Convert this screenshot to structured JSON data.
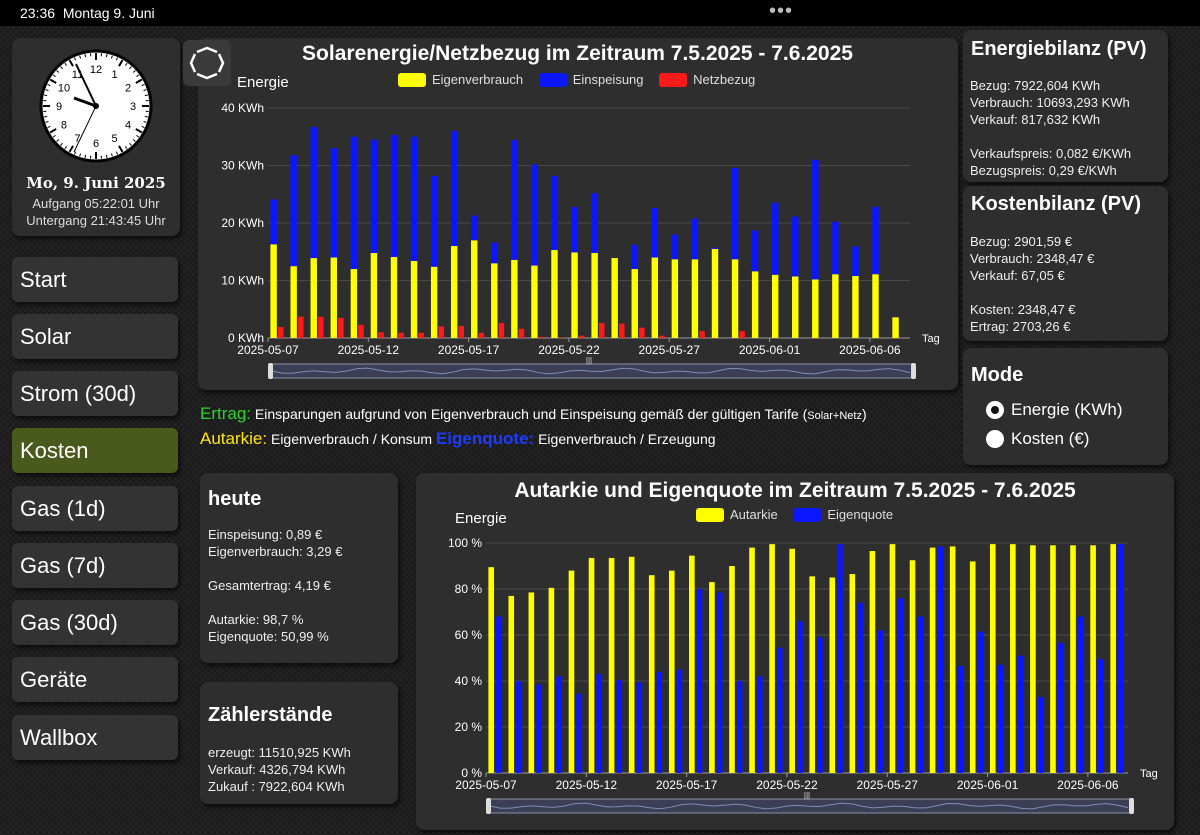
{
  "statusbar": {
    "time": "23:36",
    "date": "Montag 9. Juni"
  },
  "clock": {
    "numbers": [
      "12",
      "1",
      "2",
      "3",
      "4",
      "5",
      "6",
      "7",
      "8",
      "9",
      "10",
      "11"
    ],
    "date_label": "Mo, 9. Juni 2025",
    "sunrise": "Aufgang 05:22:01 Uhr",
    "sunset": "Untergang 21:43:45 Uhr"
  },
  "nav": {
    "items": [
      {
        "label": "Start"
      },
      {
        "label": "Solar"
      },
      {
        "label": "Strom (30d)"
      },
      {
        "label": "Kosten",
        "active": true
      },
      {
        "label": "Gas (1d)"
      },
      {
        "label": "Gas (7d)"
      },
      {
        "label": "Gas (30d)"
      },
      {
        "label": "Geräte"
      },
      {
        "label": "Wallbox"
      }
    ]
  },
  "chart1": {
    "title": "Solarenergie/Netzbezug im Zeitraum 7.5.2025 - 7.6.2025",
    "ylabel": "Energie",
    "xlabel": "Tag",
    "legend": [
      "Eigenverbrauch",
      "Einspeisung",
      "Netzbezug"
    ]
  },
  "chart2": {
    "title": "Autarkie und Eigenquote im Zeitraum 7.5.2025 - 7.6.2025",
    "ylabel": "Energie",
    "xlabel": "Tag",
    "legend": [
      "Autarkie",
      "Eigenquote"
    ]
  },
  "description": {
    "ertrag_label": "Ertrag:",
    "ertrag_text": "Einsparungen aufgrund von Eigenverbrauch und Einspeisung gemäß der gültigen Tarife (",
    "ertrag_small": "Solar+Netz",
    "ertrag_close": ")",
    "autarkie_label": "Autarkie:",
    "autarkie_text": "Eigenverbrauch / Konsum",
    "eigenquote_label": "Eigenquote:",
    "eigenquote_text": "Eigenverbrauch / Erzeugung"
  },
  "energiebilanz": {
    "title": "Energiebilanz (PV)",
    "bezug": "Bezug: 7922,604 KWh",
    "verbrauch": "Verbrauch: 10693,293 KWh",
    "verkauf": "Verkauf: 817,632 KWh",
    "verkaufspreis": "Verkaufspreis: 0,082 €/KWh",
    "bezugspreis": "Bezugspreis: 0,29 €/KWh"
  },
  "kostenbilanz": {
    "title": "Kostenbilanz (PV)",
    "bezug": "Bezug: 2901,59 €",
    "verbrauch": "Verbrauch: 2348,47 €",
    "verkauf": "Verkauf: 67,05 €",
    "kosten": "Kosten: 2348,47 €",
    "ertrag": "Ertrag: 2703,26 €"
  },
  "mode": {
    "title": "Mode",
    "option1": "Energie (KWh)",
    "option2": "Kosten (€)",
    "selected": "Energie (KWh)"
  },
  "heute": {
    "title": "heute",
    "einspeisung": "Einspeisung: 0,89 €",
    "eigenverbrauch": "Eigenverbrauch: 3,29 €",
    "gesamtertrag": "Gesamtertrag: 4,19 €",
    "autarkie": "Autarkie: 98,7 %",
    "eigenquote": "Eigenquote: 50,99 %"
  },
  "zaehler": {
    "title": "Zählerstände",
    "erzeugt": "erzeugt: 11510,925 KWh",
    "verkauf": "Verkauf: 4326,794 KWh",
    "zukauf": "Zukauf : 7922,604 KWh"
  },
  "colors": {
    "yellow": "#ffff00",
    "blue": "#0a16ff",
    "red": "#ff1a1a",
    "active_nav": "#4a5a1c"
  },
  "chart_data": [
    {
      "type": "bar",
      "stacked": true,
      "title": "Solarenergie/Netzbezug im Zeitraum 7.5.2025 - 7.6.2025",
      "ylabel": "Energie",
      "xlabel": "Tag",
      "ylim": [
        0,
        40
      ],
      "yticks": [
        "0 KWh",
        "10 KWh",
        "20 KWh",
        "30 KWh",
        "40 KWh"
      ],
      "xticks": [
        "2025-05-07",
        "2025-05-12",
        "2025-05-17",
        "2025-05-22",
        "2025-05-27",
        "2025-06-01",
        "2025-06-06"
      ],
      "categories": [
        "2025-05-07",
        "2025-05-08",
        "2025-05-09",
        "2025-05-10",
        "2025-05-11",
        "2025-05-12",
        "2025-05-13",
        "2025-05-14",
        "2025-05-15",
        "2025-05-16",
        "2025-05-17",
        "2025-05-18",
        "2025-05-19",
        "2025-05-20",
        "2025-05-21",
        "2025-05-22",
        "2025-05-23",
        "2025-05-24",
        "2025-05-25",
        "2025-05-26",
        "2025-05-27",
        "2025-05-28",
        "2025-05-29",
        "2025-05-30",
        "2025-05-31",
        "2025-06-01",
        "2025-06-02",
        "2025-06-03",
        "2025-06-04",
        "2025-06-05",
        "2025-06-06",
        "2025-06-07"
      ],
      "series": [
        {
          "name": "Eigenverbrauch",
          "color": "#ffff00",
          "values": [
            16.3,
            12.5,
            13.9,
            14.0,
            12.0,
            14.8,
            14.1,
            13.4,
            12.4,
            16.0,
            17.0,
            13.0,
            13.6,
            12.6,
            15.3,
            14.9,
            14.8,
            13.9,
            12.0,
            14.0,
            13.7,
            13.7,
            15.5,
            13.7,
            11.6,
            11.0,
            10.7,
            10.2,
            11.1,
            10.8,
            11.1,
            3.6
          ]
        },
        {
          "name": "Einspeisung",
          "color": "#0a16ff",
          "values": [
            7.8,
            19.3,
            22.8,
            19.0,
            23.0,
            19.7,
            21.2,
            21.6,
            15.8,
            20.0,
            4.3,
            3.6,
            20.8,
            17.6,
            12.9,
            7.9,
            10.4,
            0.0,
            4.2,
            8.6,
            4.3,
            7.1,
            0.2,
            15.9,
            7.1,
            12.5,
            10.4,
            20.8,
            9.1,
            5.1,
            11.7,
            0.0
          ]
        },
        {
          "name": "Netzbezug",
          "color": "#ff1a1a",
          "values": [
            1.9,
            3.7,
            3.7,
            3.5,
            2.3,
            1.0,
            0.9,
            0.9,
            2.0,
            2.1,
            0.9,
            2.6,
            1.6,
            0.2,
            0.1,
            0.4,
            2.6,
            2.5,
            1.8,
            0.4,
            0.0,
            1.2,
            0.0,
            1.2,
            0.0,
            0.0,
            0.0,
            0.0,
            0.0,
            0.0,
            0.0,
            0.0
          ]
        }
      ]
    },
    {
      "type": "bar",
      "title": "Autarkie und Eigenquote im Zeitraum 7.5.2025 - 7.6.2025",
      "ylabel": "Energie",
      "xlabel": "Tag",
      "ylim": [
        0,
        100
      ],
      "yticks": [
        "0 %",
        "20 %",
        "40 %",
        "60 %",
        "80 %",
        "100 %"
      ],
      "xticks": [
        "2025-05-07",
        "2025-05-12",
        "2025-05-17",
        "2025-05-22",
        "2025-05-27",
        "2025-06-01",
        "2025-06-06"
      ],
      "categories": [
        "2025-05-07",
        "2025-05-08",
        "2025-05-09",
        "2025-05-10",
        "2025-05-11",
        "2025-05-12",
        "2025-05-13",
        "2025-05-14",
        "2025-05-15",
        "2025-05-16",
        "2025-05-17",
        "2025-05-18",
        "2025-05-19",
        "2025-05-20",
        "2025-05-21",
        "2025-05-22",
        "2025-05-23",
        "2025-05-24",
        "2025-05-25",
        "2025-05-26",
        "2025-05-27",
        "2025-05-28",
        "2025-05-29",
        "2025-05-30",
        "2025-05-31",
        "2025-06-01",
        "2025-06-02",
        "2025-06-03",
        "2025-06-04",
        "2025-06-05",
        "2025-06-06",
        "2025-06-07"
      ],
      "series": [
        {
          "name": "Autarkie",
          "color": "#ffff00",
          "values": [
            89.5,
            77,
            78.5,
            80.5,
            88,
            93.5,
            93.5,
            94,
            86,
            88,
            94.5,
            83,
            90,
            98,
            99.5,
            97.5,
            85.5,
            85,
            86.5,
            96.5,
            99.5,
            92.5,
            98,
            98.5,
            92,
            99.5,
            99.5,
            99,
            99,
            99,
            99,
            99.5
          ]
        },
        {
          "name": "Eigenquote",
          "color": "#0a16ff",
          "values": [
            68,
            40,
            38.5,
            42,
            34.5,
            43,
            40.5,
            39.5,
            44,
            45,
            80,
            78.5,
            40,
            42,
            54.5,
            66,
            59,
            99.5,
            74,
            62,
            76,
            68,
            98.5,
            46.5,
            61.5,
            47,
            51,
            33,
            56.5,
            68,
            49.5,
            99.5
          ]
        }
      ]
    }
  ]
}
